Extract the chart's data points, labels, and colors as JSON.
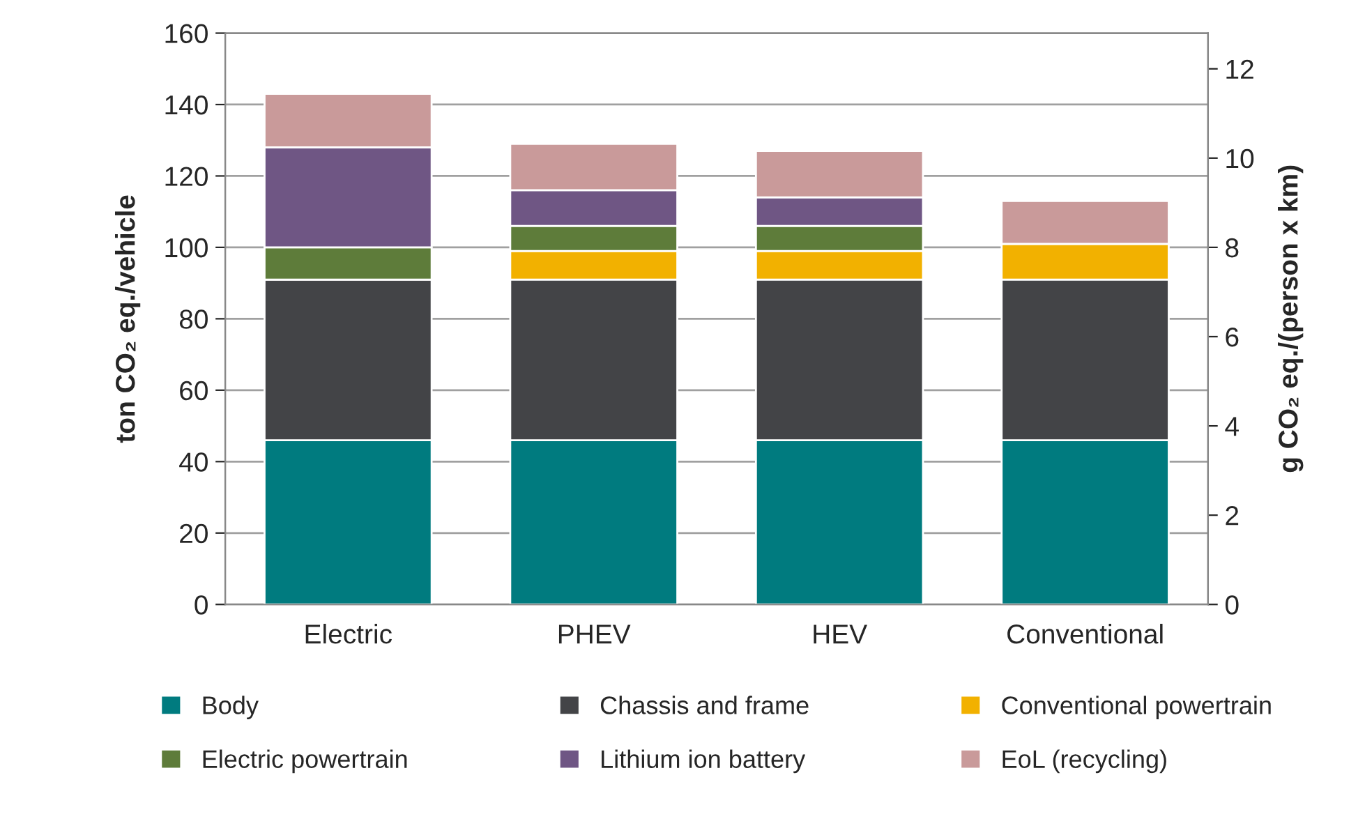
{
  "chart_data": {
    "type": "bar",
    "stacked": true,
    "ylabel": "ton CO₂ eq./vehicle",
    "y2label": "g CO₂ eq./(person x km)",
    "categories": [
      "Electric",
      "PHEV",
      "HEV",
      "Conventional"
    ],
    "series": [
      {
        "name": "Body",
        "color": "#007b7f",
        "values": [
          46,
          46,
          46,
          46
        ]
      },
      {
        "name": "Chassis and frame",
        "color": "#434447",
        "values": [
          45,
          45,
          45,
          45
        ]
      },
      {
        "name": "Conventional powertrain",
        "color": "#f2b100",
        "values": [
          0,
          8,
          8,
          10
        ]
      },
      {
        "name": "Electric powertrain",
        "color": "#5e7c3a",
        "values": [
          9,
          7,
          7,
          0
        ]
      },
      {
        "name": "Lithium ion battery",
        "color": "#6f5684",
        "values": [
          28,
          10,
          8,
          0
        ]
      },
      {
        "name": "EoL (recycling)",
        "color": "#c99a9a",
        "values": [
          15,
          13,
          13,
          12
        ]
      }
    ],
    "ylim": [
      0,
      160
    ],
    "yticks": [
      0,
      20,
      40,
      60,
      80,
      100,
      120,
      140,
      160
    ],
    "y2lim": [
      0,
      12.8
    ],
    "y2ticks": [
      0,
      2,
      4,
      6,
      8,
      10,
      12
    ],
    "grid": "y",
    "legend": "bottom"
  }
}
